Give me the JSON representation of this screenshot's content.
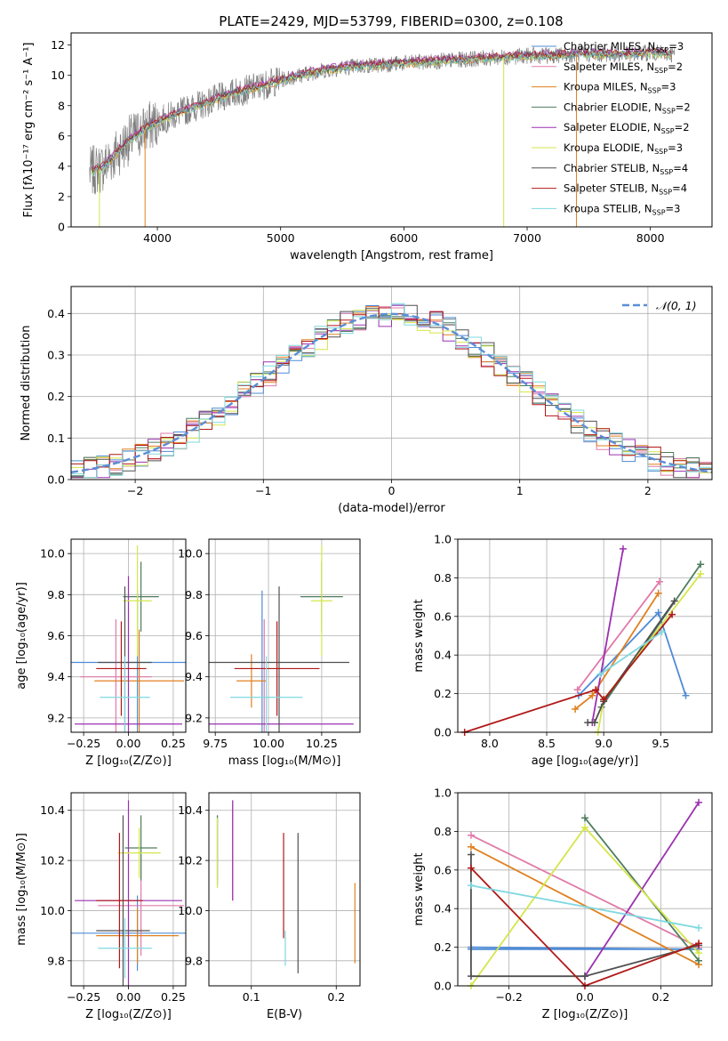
{
  "figure_title": "PLATE=2429, MJD=53799, FIBERID=0300, z=0.108",
  "chart_data": [
    {
      "id": "spectrum",
      "type": "line",
      "xlabel": "wavelength [Angstrom, rest frame]",
      "ylabel": "Flux [fλ10⁻¹⁷ erg cm⁻² s⁻¹ A⁻¹]",
      "xlim": [
        3300,
        8500
      ],
      "ylim": [
        0,
        12.8
      ],
      "xticks": [
        4000,
        5000,
        6000,
        7000,
        8000
      ],
      "yticks": [
        0,
        2,
        4,
        6,
        8,
        10,
        12
      ],
      "grid": false,
      "legend_position": "top-right",
      "observed": {
        "color": "#808080",
        "x": [
          3450,
          3550,
          3650,
          3750,
          3850,
          3950,
          4050,
          4200,
          4400,
          4600,
          4800,
          5000,
          5200,
          5400,
          5600,
          5800,
          6000,
          6200,
          6400,
          6600,
          6800,
          7000,
          7200,
          7400,
          7600,
          7800,
          8000,
          8200
        ],
        "y": [
          3.6,
          3.9,
          4.7,
          5.6,
          6.2,
          6.7,
          7.1,
          7.6,
          8.2,
          8.8,
          9.2,
          9.7,
          10.1,
          10.4,
          10.6,
          10.7,
          10.8,
          10.9,
          11.0,
          11.1,
          11.2,
          11.3,
          11.3,
          11.4,
          11.4,
          11.4,
          11.5,
          11.4
        ]
      },
      "models": [
        {
          "name": "Chabrier MILES, N_SSP=3",
          "label_main": "Chabrier MILES, N",
          "label_sub": "SSP",
          "label_tail": "=3",
          "color": "#4f8bd6",
          "offset": 0.0
        },
        {
          "name": "Salpeter MILES, N_SSP=2",
          "label_main": "Salpeter MILES, N",
          "label_sub": "SSP",
          "label_tail": "=2",
          "color": "#e07aaa",
          "offset": 0.1
        },
        {
          "name": "Kroupa MILES, N_SSP=3",
          "label_main": "Kroupa MILES, N",
          "label_sub": "SSP",
          "label_tail": "=3",
          "color": "#e08020",
          "offset": -0.1
        },
        {
          "name": "Chabrier ELODIE, N_SSP=2",
          "label_main": "Chabrier ELODIE, N",
          "label_sub": "SSP",
          "label_tail": "=2",
          "color": "#4e7d5e",
          "offset": 0.05
        },
        {
          "name": "Salpeter ELODIE, N_SSP=2",
          "label_main": "Salpeter ELODIE, N",
          "label_sub": "SSP",
          "label_tail": "=2",
          "color": "#9b30b0",
          "offset": 0.15
        },
        {
          "name": "Kroupa ELODIE, N_SSP=3",
          "label_main": "Kroupa ELODIE, N",
          "label_sub": "SSP",
          "label_tail": "=3",
          "color": "#d4e64a",
          "offset": -0.05
        },
        {
          "name": "Chabrier STELIB, N_SSP=4",
          "label_main": "Chabrier STELIB, N",
          "label_sub": "SSP",
          "label_tail": "=4",
          "color": "#505050",
          "offset": 0.0
        },
        {
          "name": "Salpeter STELIB, N_SSP=4",
          "label_main": "Salpeter STELIB, N",
          "label_sub": "SSP",
          "label_tail": "=4",
          "color": "#b01818",
          "offset": 0.1
        },
        {
          "name": "Kroupa STELIB, N_SSP=3",
          "label_main": "Kroupa STELIB, N",
          "label_sub": "SSP",
          "label_tail": "=3",
          "color": "#7fd8e0",
          "offset": -0.1
        }
      ]
    },
    {
      "id": "residuals",
      "type": "line",
      "xlabel": "(data-model)/error",
      "ylabel": "Normed distribution",
      "xlim": [
        -2.5,
        2.5
      ],
      "ylim": [
        0,
        0.465
      ],
      "xticks": [
        -2,
        -1,
        0,
        1,
        2
      ],
      "yticks": [
        0.0,
        0.1,
        0.2,
        0.3,
        0.4
      ],
      "grid": true,
      "legend_position": "top-right",
      "reference_label": "𝒩(0, 1)",
      "reference_color": "#5b8ed6",
      "bin_width": 0.1
    },
    {
      "id": "age-vs-Z",
      "type": "scatter",
      "xlabel": "Z [log₁₀(Z/Z⊙)]",
      "ylabel": "age  [log₁₀(age/yr)]",
      "xlim": [
        -0.32,
        0.32
      ],
      "ylim": [
        9.13,
        10.07
      ],
      "xticks": [
        -0.25,
        0.0,
        0.25
      ],
      "yticks": [
        9.2,
        9.4,
        9.6,
        9.8,
        10.0
      ],
      "grid": true,
      "points": [
        {
          "color": "#4f8bd6",
          "x": 0.05,
          "y": 9.47,
          "xerr": 0.38,
          "yerr": 0.35
        },
        {
          "color": "#e07aaa",
          "x": -0.07,
          "y": 9.4,
          "xerr": 0.2,
          "yerr": 0.28
        },
        {
          "color": "#e08020",
          "x": 0.06,
          "y": 9.38,
          "xerr": 0.25,
          "yerr": 0.25
        },
        {
          "color": "#4e7d5e",
          "x": 0.07,
          "y": 9.79,
          "xerr": 0.1,
          "yerr": 0.17
        },
        {
          "color": "#9b30b0",
          "x": 0.0,
          "y": 9.17,
          "xerr": 0.3,
          "yerr": 0.72
        },
        {
          "color": "#d4e64a",
          "x": 0.05,
          "y": 9.77,
          "xerr": 0.08,
          "yerr": 0.27
        },
        {
          "color": "#505050",
          "x": -0.02,
          "y": 9.47,
          "xerr": 0.15,
          "yerr": 0.37
        },
        {
          "color": "#b01818",
          "x": -0.04,
          "y": 9.44,
          "xerr": 0.14,
          "yerr": 0.23
        },
        {
          "color": "#7fd8e0",
          "x": -0.02,
          "y": 9.3,
          "xerr": 0.14,
          "yerr": 0.2
        }
      ]
    },
    {
      "id": "age-vs-mass",
      "type": "scatter",
      "xlabel": "mass [log₁₀(M/M⊙)]",
      "ylabel": "",
      "xlim": [
        9.72,
        10.43
      ],
      "ylim": [
        9.13,
        10.07
      ],
      "xticks": [
        9.75,
        10.0,
        10.25
      ],
      "yticks": [
        9.2,
        9.4,
        9.6,
        9.8,
        10.0
      ],
      "grid": true,
      "points": [
        {
          "color": "#4f8bd6",
          "x": 9.97,
          "y": 9.47,
          "xerr": 0.0,
          "yerr": 0.35
        },
        {
          "color": "#e07aaa",
          "x": 9.98,
          "y": 9.4,
          "xerr": 0.0,
          "yerr": 0.28
        },
        {
          "color": "#e08020",
          "x": 9.92,
          "y": 9.38,
          "xerr": 0.07,
          "yerr": 0.13
        },
        {
          "color": "#4e7d5e",
          "x": 10.25,
          "y": 9.79,
          "xerr": 0.1,
          "yerr": 0.17
        },
        {
          "color": "#9b30b0",
          "x": 10.06,
          "y": 9.17,
          "xerr": 0.34,
          "yerr": 0.0
        },
        {
          "color": "#d4e64a",
          "x": 10.25,
          "y": 9.77,
          "xerr": 0.05,
          "yerr": 0.27
        },
        {
          "color": "#505050",
          "x": 10.05,
          "y": 9.47,
          "xerr": 0.33,
          "yerr": 0.37
        },
        {
          "color": "#b01818",
          "x": 10.04,
          "y": 9.44,
          "xerr": 0.2,
          "yerr": 0.23
        },
        {
          "color": "#7fd8e0",
          "x": 9.99,
          "y": 9.3,
          "xerr": 0.17,
          "yerr": 0.2
        }
      ]
    },
    {
      "id": "weight-vs-age",
      "type": "line",
      "xlabel": "age  [log₁₀(age/yr)]",
      "ylabel": "mass weight",
      "xlim": [
        7.72,
        9.95
      ],
      "ylim": [
        0,
        1.0
      ],
      "xticks": [
        8.0,
        8.5,
        9.0,
        9.5
      ],
      "yticks": [
        0.0,
        0.2,
        0.4,
        0.6,
        0.8,
        1.0
      ],
      "grid": true,
      "series": [
        {
          "color": "#4f8bd6",
          "x": [
            8.78,
            9.48,
            9.72
          ],
          "y": [
            0.19,
            0.62,
            0.19
          ]
        },
        {
          "color": "#e07aaa",
          "x": [
            8.77,
            9.49
          ],
          "y": [
            0.22,
            0.78
          ]
        },
        {
          "color": "#e08020",
          "x": [
            8.75,
            8.9,
            9.48
          ],
          "y": [
            0.12,
            0.19,
            0.72
          ]
        },
        {
          "color": "#4e7d5e",
          "x": [
            8.98,
            9.85
          ],
          "y": [
            0.13,
            0.87
          ]
        },
        {
          "color": "#9b30b0",
          "x": [
            8.9,
            9.17
          ],
          "y": [
            0.05,
            0.95
          ]
        },
        {
          "color": "#d4e64a",
          "x": [
            8.95,
            9.0,
            9.85
          ],
          "y": [
            0.0,
            0.17,
            0.82
          ]
        },
        {
          "color": "#505050",
          "x": [
            8.86,
            8.92,
            9.0,
            9.62
          ],
          "y": [
            0.05,
            0.05,
            0.16,
            0.68
          ]
        },
        {
          "color": "#b01818",
          "x": [
            7.78,
            8.93,
            9.0,
            9.6
          ],
          "y": [
            0.0,
            0.22,
            0.17,
            0.61
          ]
        },
        {
          "color": "#7fd8e0",
          "x": [
            8.97,
            9.51
          ],
          "y": [
            0.3,
            0.52
          ]
        }
      ]
    },
    {
      "id": "mass-vs-Z",
      "type": "scatter",
      "xlabel": "Z [log₁₀(Z/Z⊙)]",
      "ylabel": "mass [log₁₀(M/M⊙)]",
      "xlim": [
        -0.32,
        0.32
      ],
      "ylim": [
        9.7,
        10.47
      ],
      "xticks": [
        -0.25,
        0.0,
        0.25
      ],
      "yticks": [
        9.8,
        10.0,
        10.2,
        10.4
      ],
      "grid": true,
      "points": [
        {
          "color": "#4f8bd6",
          "x": 0.05,
          "y": 9.91,
          "xerr": 0.37,
          "yerr": 0.15
        },
        {
          "color": "#e07aaa",
          "x": 0.07,
          "y": 10.02,
          "xerr": 0.24,
          "yerr": 0.2
        },
        {
          "color": "#e08020",
          "x": 0.05,
          "y": 9.9,
          "xerr": 0.23,
          "yerr": 0.11
        },
        {
          "color": "#4e7d5e",
          "x": 0.07,
          "y": 10.25,
          "xerr": 0.09,
          "yerr": 0.13
        },
        {
          "color": "#9b30b0",
          "x": 0.0,
          "y": 10.04,
          "xerr": 0.3,
          "yerr": 0.4
        },
        {
          "color": "#d4e64a",
          "x": 0.06,
          "y": 10.23,
          "xerr": 0.12,
          "yerr": 0.1
        },
        {
          "color": "#505050",
          "x": -0.03,
          "y": 9.92,
          "xerr": 0.15,
          "yerr": 0.46
        },
        {
          "color": "#b01818",
          "x": -0.05,
          "y": 10.04,
          "xerr": 0.13,
          "yerr": 0.27
        },
        {
          "color": "#7fd8e0",
          "x": -0.02,
          "y": 9.85,
          "xerr": 0.15,
          "yerr": 0.12
        }
      ]
    },
    {
      "id": "mass-vs-EBV",
      "type": "scatter",
      "xlabel": "E(B-V)",
      "ylabel": "",
      "xlim": [
        0.05,
        0.228
      ],
      "ylim": [
        9.7,
        10.47
      ],
      "xticks": [
        0.1,
        0.2
      ],
      "yticks": [
        9.8,
        10.0,
        10.2,
        10.4
      ],
      "grid": true,
      "points": [
        {
          "color": "#4f8bd6",
          "x": 0.06,
          "y": 10.24,
          "xerr": 0,
          "yerr": 0.14
        },
        {
          "color": "#e07aaa",
          "x": 0.078,
          "y": 10.24,
          "xerr": 0,
          "yerr": 0.2
        },
        {
          "color": "#e08020",
          "x": 0.222,
          "y": 9.95,
          "xerr": 0,
          "yerr": 0.16
        },
        {
          "color": "#4e7d5e",
          "x": 0.06,
          "y": 10.25,
          "xerr": 0,
          "yerr": 0.13
        },
        {
          "color": "#9b30b0",
          "x": 0.078,
          "y": 10.24,
          "xerr": 0,
          "yerr": 0.2
        },
        {
          "color": "#d4e64a",
          "x": 0.06,
          "y": 10.23,
          "xerr": 0,
          "yerr": 0.14
        },
        {
          "color": "#505050",
          "x": 0.155,
          "y": 10.03,
          "xerr": 0,
          "yerr": 0.28
        },
        {
          "color": "#b01818",
          "x": 0.138,
          "y": 10.1,
          "xerr": 0,
          "yerr": 0.21
        },
        {
          "color": "#7fd8e0",
          "x": 0.14,
          "y": 9.85,
          "xerr": 0,
          "yerr": 0.07
        }
      ]
    },
    {
      "id": "weight-vs-Z",
      "type": "line",
      "xlabel": "Z [log₁₀(Z/Z⊙)]",
      "ylabel": "mass weight",
      "xlim": [
        -0.335,
        0.335
      ],
      "ylim": [
        0,
        1.0
      ],
      "xticks": [
        -0.2,
        0.0,
        0.2
      ],
      "yticks": [
        0.0,
        0.2,
        0.4,
        0.6,
        0.8,
        1.0
      ],
      "grid": true,
      "series": [
        {
          "color": "#4f8bd6",
          "x": [
            -0.3,
            0.3,
            -0.3
          ],
          "y": [
            0.2,
            0.19,
            0.19
          ]
        },
        {
          "color": "#e07aaa",
          "x": [
            -0.3,
            0.3
          ],
          "y": [
            0.78,
            0.2
          ]
        },
        {
          "color": "#e08020",
          "x": [
            -0.3,
            0.3
          ],
          "y": [
            0.72,
            0.11
          ]
        },
        {
          "color": "#4e7d5e",
          "x": [
            0.0,
            0.3
          ],
          "y": [
            0.87,
            0.13
          ]
        },
        {
          "color": "#9b30b0",
          "x": [
            0.0,
            0.3
          ],
          "y": [
            0.05,
            0.95
          ]
        },
        {
          "color": "#d4e64a",
          "x": [
            -0.3,
            0.0,
            0.3
          ],
          "y": [
            0.0,
            0.82,
            0.17
          ]
        },
        {
          "color": "#505050",
          "x": [
            -0.3,
            -0.3,
            0.0,
            0.3
          ],
          "y": [
            0.68,
            0.05,
            0.05,
            0.21
          ]
        },
        {
          "color": "#b01818",
          "x": [
            -0.3,
            0.0,
            0.3
          ],
          "y": [
            0.61,
            0.0,
            0.22
          ]
        },
        {
          "color": "#7fd8e0",
          "x": [
            -0.3,
            0.3
          ],
          "y": [
            0.52,
            0.3
          ]
        }
      ]
    }
  ]
}
